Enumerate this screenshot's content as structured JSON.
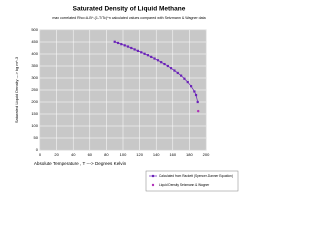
{
  "chart_data": {
    "type": "line",
    "title": "Saturated Density of Liquid Methane",
    "subtitle": "max correlated Rho=A-B^-(1-T/Tc)^n calculated values compared with Setzmann & Wagner data",
    "xlabel": "Absolute Temperature , T ---> Degrees Kelvin",
    "ylabel": "Saturated Liquid Density ---> kg m^-3",
    "xlim": [
      0,
      200
    ],
    "xticks": [
      0,
      20,
      40,
      60,
      80,
      100,
      120,
      140,
      160,
      180,
      200
    ],
    "ylim": [
      0,
      500
    ],
    "yticks": [
      0,
      50,
      100,
      150,
      200,
      250,
      300,
      350,
      400,
      450,
      500
    ],
    "grid": true,
    "legend": "bottom-right",
    "series": [
      {
        "name": "Calculated from Rackett (Spencer-Danner Equation)",
        "color": "#6a22b8",
        "line": true,
        "marker": "square",
        "x": [
          90,
          94,
          98,
          102,
          106,
          110,
          114,
          118,
          122,
          126,
          130,
          134,
          138,
          142,
          146,
          150,
          154,
          158,
          162,
          166,
          170,
          174,
          178,
          182,
          186,
          188,
          190
        ],
        "values": [
          451,
          446,
          441,
          436,
          431,
          425,
          419,
          413,
          407,
          401,
          395,
          388,
          381,
          374,
          366,
          358,
          350,
          341,
          331,
          321,
          310,
          297,
          283,
          266,
          244,
          229,
          200
        ]
      },
      {
        "name": "Liquid Density Setzmann & Wagner",
        "color": "#b030b8",
        "line": false,
        "marker": "circle",
        "x": [
          190.6
        ],
        "values": [
          162
        ]
      }
    ]
  }
}
